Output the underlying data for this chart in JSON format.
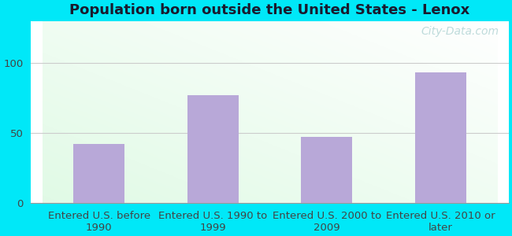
{
  "title": "Population born outside the United States - Lenox",
  "categories": [
    "Entered U.S. before\n1990",
    "Entered U.S. 1990 to\n1999",
    "Entered U.S. 2000 to\n2009",
    "Entered U.S. 2010 or\nlater"
  ],
  "values": [
    42,
    77,
    47,
    93
  ],
  "bar_color": "#b8a8d8",
  "ylim": [
    0,
    130
  ],
  "yticks": [
    0,
    50,
    100
  ],
  "background_outer": "#00e8f8",
  "grid_color": "#cccccc",
  "title_fontsize": 13,
  "tick_fontsize": 9.5,
  "watermark": "City-Data.com",
  "watermark_fontsize": 10
}
